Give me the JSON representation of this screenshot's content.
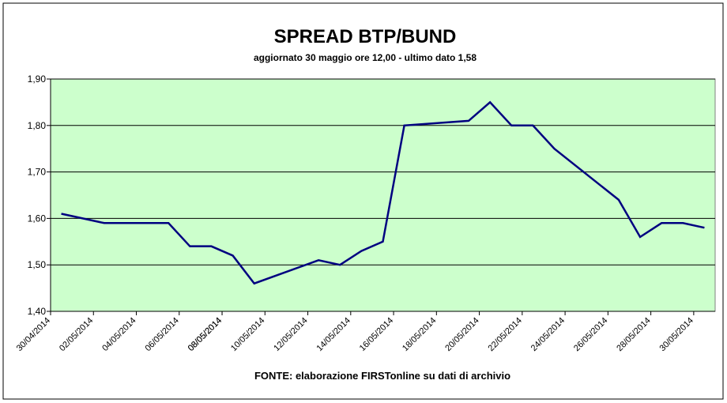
{
  "chart_data": {
    "type": "line",
    "title": "SPREAD BTP/BUND",
    "subtitle": "aggiornato 30 maggio ore 12,00 - ultimo dato 1,58",
    "source": "FONTE: elaborazione FIRSTonline su dati di archivio",
    "series": [
      {
        "name": "Spread",
        "color": "#000080",
        "x": [
          "30/04/2014",
          "02/05/2014",
          "05/05/2014",
          "06/05/2014",
          "07/05/2014",
          "08/05/2014",
          "09/05/2014",
          "12/05/2014",
          "13/05/2014",
          "14/05/2014",
          "15/05/2014",
          "16/05/2014",
          "19/05/2014",
          "20/05/2014",
          "21/05/2014",
          "22/05/2014",
          "23/05/2014",
          "26/05/2014",
          "27/05/2014",
          "28/05/2014",
          "29/05/2014",
          "30/05/2014"
        ],
        "values": [
          1.61,
          1.59,
          1.59,
          1.54,
          1.54,
          1.52,
          1.46,
          1.51,
          1.5,
          1.53,
          1.55,
          1.8,
          1.81,
          1.85,
          1.8,
          1.8,
          1.75,
          1.64,
          1.56,
          1.59,
          1.59,
          1.58
        ]
      }
    ],
    "xticks": [
      "30/04/2014",
      "02/05/2014",
      "04/05/2014",
      "06/05/2014",
      "08/05/2014",
      "08/05/2014",
      "10/05/2014",
      "12/05/2014",
      "14/05/2014",
      "16/05/2014",
      "18/05/2014",
      "20/05/2014",
      "22/05/2014",
      "24/05/2014",
      "26/05/2014",
      "28/05/2014",
      "30/05/2014"
    ],
    "ylim": [
      1.4,
      1.9
    ],
    "yticks": [
      {
        "value": 1.4,
        "label": "1,40"
      },
      {
        "value": 1.5,
        "label": "1,50"
      },
      {
        "value": 1.6,
        "label": "1,60"
      },
      {
        "value": 1.7,
        "label": "1,70"
      },
      {
        "value": 1.8,
        "label": "1,80"
      },
      {
        "value": 1.9,
        "label": "1,90"
      }
    ],
    "grid": true,
    "background": "#ccffcc"
  }
}
